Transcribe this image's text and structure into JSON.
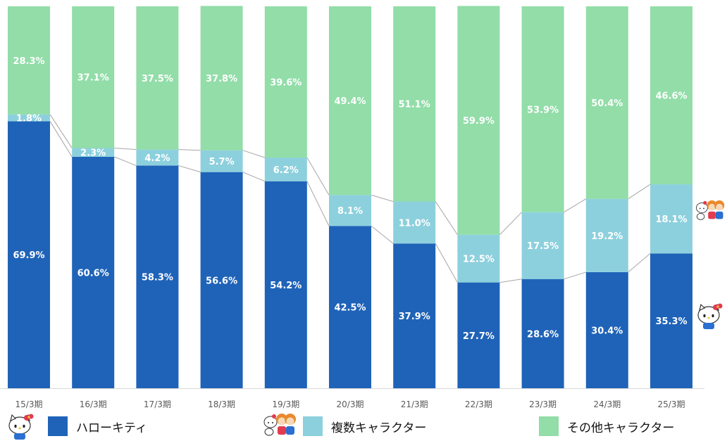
{
  "chart_data": {
    "type": "bar",
    "stacked": true,
    "normalized": true,
    "categories": [
      "15/3期",
      "16/3期",
      "17/3期",
      "18/3期",
      "19/3期",
      "20/3期",
      "21/3期",
      "22/3期",
      "23/3期",
      "24/3期",
      "25/3期"
    ],
    "series": [
      {
        "name": "ハローキティ",
        "color": "#1f63b8",
        "values": [
          69.9,
          60.6,
          58.3,
          56.6,
          54.2,
          42.5,
          37.9,
          27.7,
          28.6,
          30.4,
          35.3
        ],
        "labels": [
          "69.9%",
          "60.6%",
          "58.3%",
          "56.6%",
          "54.2%",
          "42.5%",
          "37.9%",
          "27.7%",
          "28.6%",
          "30.4%",
          "35.3%"
        ]
      },
      {
        "name": "複数キャラクター",
        "color": "#8dd0dd",
        "values": [
          1.8,
          2.3,
          4.2,
          5.7,
          6.2,
          8.1,
          11.0,
          12.5,
          17.5,
          19.2,
          18.1
        ],
        "labels": [
          "1.8%",
          "2.3%",
          "4.2%",
          "5.7%",
          "6.2%",
          "8.1%",
          "11.0%",
          "12.5%",
          "17.5%",
          "19.2%",
          "18.1%"
        ]
      },
      {
        "name": "その他キャラクター",
        "color": "#92dda8",
        "values": [
          28.3,
          37.1,
          37.5,
          37.8,
          39.6,
          49.4,
          51.1,
          59.9,
          53.9,
          50.4,
          46.6
        ],
        "labels": [
          "28.3%",
          "37.1%",
          "37.5%",
          "37.8%",
          "39.6%",
          "49.4%",
          "51.1%",
          "59.9%",
          "53.9%",
          "50.4%",
          "46.6%"
        ]
      }
    ],
    "ylim": [
      0,
      100
    ],
    "series_lines": true,
    "grid": false,
    "legend_position": "bottom"
  },
  "icons": {
    "kitty": "hello-kitty-icon",
    "group": "character-group-icon"
  }
}
